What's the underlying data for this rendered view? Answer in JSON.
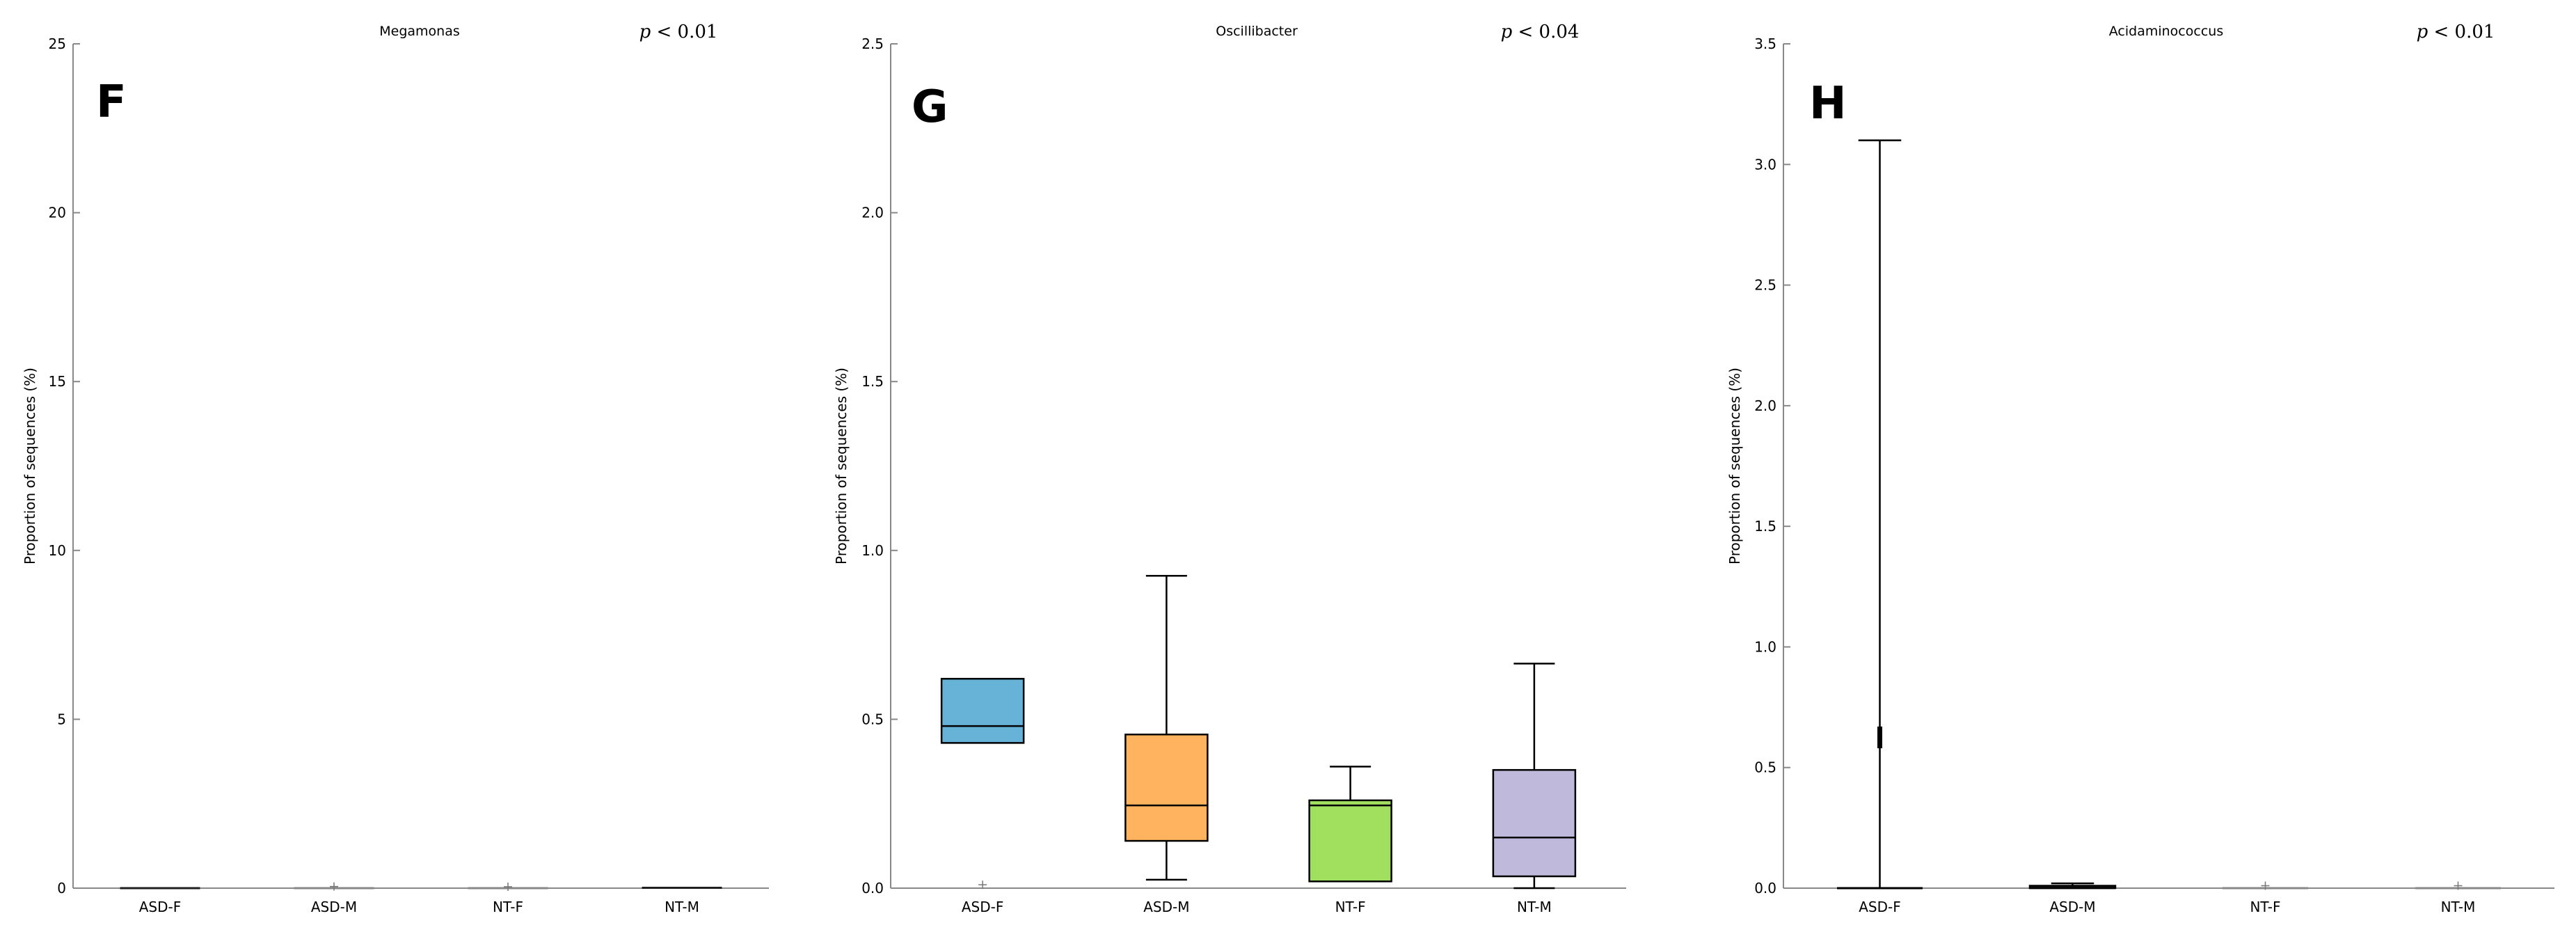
{
  "figure": {
    "background": "#ffffff",
    "axis_color": "#888888",
    "box_stroke": "#000000"
  },
  "chart_data": [
    {
      "type": "box",
      "panel_letter": "F",
      "title": "Megamonas",
      "p_text": "p < 0.01",
      "ylabel": "Proportion of sequences (%)",
      "xlabel": "",
      "ylim": [
        0,
        25
      ],
      "yticks": [
        0,
        5,
        10,
        15,
        20,
        25
      ],
      "ytick_labels": [
        "0",
        "5",
        "10",
        "15",
        "20",
        "25"
      ],
      "categories": [
        "ASD-F",
        "ASD-M",
        "NT-F",
        "NT-M"
      ],
      "boxes": [
        {
          "category": "ASD-F",
          "whisker_low": 0,
          "q1": 0,
          "median": 0,
          "q3": 0.02,
          "whisker_high": 0.03,
          "outliers": [],
          "color": "#1f1f1f"
        },
        {
          "category": "ASD-M",
          "whisker_low": 0,
          "q1": 0,
          "median": 0,
          "q3": 0,
          "whisker_high": 0,
          "outliers": [
            0.05
          ],
          "color": "#888888"
        },
        {
          "category": "NT-F",
          "whisker_low": 0,
          "q1": 0,
          "median": 0,
          "q3": 0,
          "whisker_high": 0,
          "outliers": [
            0.04
          ],
          "color": "#888888"
        },
        {
          "category": "NT-M",
          "whisker_low": 0,
          "q1": 0,
          "median": 0.01,
          "q3": 0.02,
          "whisker_high": 0.03,
          "outliers": [],
          "color": "#1f1f1f"
        }
      ]
    },
    {
      "type": "box",
      "panel_letter": "G",
      "title": "Oscillibacter",
      "p_text": "p < 0.04",
      "ylabel": "Proportion of sequences (%)",
      "xlabel": "",
      "ylim": [
        0,
        2.5
      ],
      "yticks": [
        0,
        0.5,
        1.0,
        1.5,
        2.0,
        2.5
      ],
      "ytick_labels": [
        "0.0",
        "0.5",
        "1.0",
        "1.5",
        "2.0",
        "2.5"
      ],
      "categories": [
        "ASD-F",
        "ASD-M",
        "NT-F",
        "NT-M"
      ],
      "boxes": [
        {
          "category": "ASD-F",
          "whisker_low": 0.43,
          "q1": 0.43,
          "median": 0.48,
          "q3": 0.62,
          "whisker_high": 0.62,
          "outliers": [
            0.01
          ],
          "color": "#66b3d7"
        },
        {
          "category": "ASD-M",
          "whisker_low": 0.025,
          "q1": 0.14,
          "median": 0.245,
          "q3": 0.455,
          "whisker_high": 0.925,
          "outliers": [],
          "color": "#ffb35e"
        },
        {
          "category": "NT-F",
          "whisker_low": 0.02,
          "q1": 0.02,
          "median": 0.245,
          "q3": 0.26,
          "whisker_high": 0.36,
          "outliers": [],
          "color": "#a1e05f"
        },
        {
          "category": "NT-M",
          "whisker_low": 0,
          "q1": 0.035,
          "median": 0.15,
          "q3": 0.35,
          "whisker_high": 0.665,
          "outliers": [],
          "color": "#bfbadb"
        }
      ]
    },
    {
      "type": "box",
      "panel_letter": "H",
      "title": "Acidaminococcus",
      "p_text": "p < 0.01",
      "ylabel": "Proportion of sequences (%)",
      "xlabel": "",
      "ylim": [
        0,
        3.5
      ],
      "yticks": [
        0,
        0.5,
        1.0,
        1.5,
        2.0,
        2.5,
        3.0,
        3.5
      ],
      "ytick_labels": [
        "0.0",
        "0.5",
        "1.0",
        "1.5",
        "2.0",
        "2.5",
        "3.0",
        "3.5"
      ],
      "categories": [
        "ASD-F",
        "ASD-M",
        "NT-F",
        "NT-M"
      ],
      "boxes": [
        {
          "category": "ASD-F",
          "whisker_low": 0,
          "q1": 0,
          "median": 0,
          "q3": 0,
          "whisker_high": 3.1,
          "outliers": [],
          "mark_low": 0.58,
          "mark_high": 0.67,
          "color": "#000000"
        },
        {
          "category": "ASD-M",
          "whisker_low": 0,
          "q1": 0,
          "median": 0,
          "q3": 0.01,
          "whisker_high": 0.02,
          "outliers": [],
          "color": "#1f1f1f"
        },
        {
          "category": "NT-F",
          "whisker_low": 0,
          "q1": 0,
          "median": 0,
          "q3": 0,
          "whisker_high": 0,
          "outliers": [
            0.01
          ],
          "color": "#888888"
        },
        {
          "category": "NT-M",
          "whisker_low": 0,
          "q1": 0,
          "median": 0,
          "q3": 0,
          "whisker_high": 0,
          "outliers": [
            0.01
          ],
          "color": "#888888"
        }
      ]
    }
  ]
}
